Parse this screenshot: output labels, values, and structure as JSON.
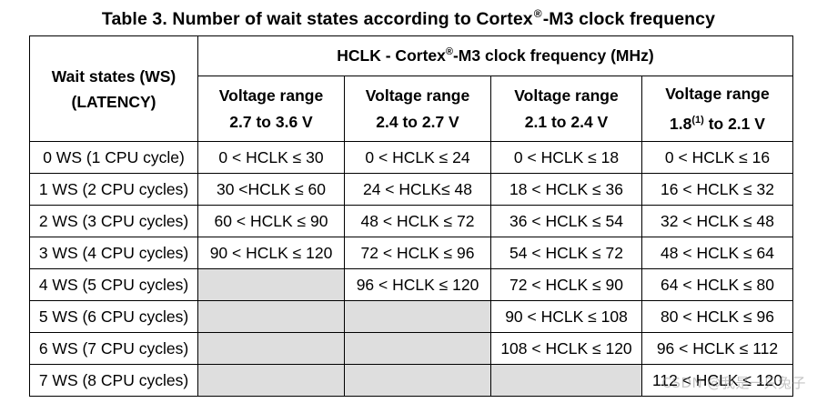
{
  "title": {
    "before": "Table 3. Number of wait states according to Cortex",
    "reg": "®",
    "after": "-M3 clock frequency"
  },
  "table": {
    "ws_header": {
      "line1": "Wait states (WS)",
      "line2": "(LATENCY)"
    },
    "freq_header": {
      "before": "HCLK - Cortex",
      "reg": "®",
      "after": "-M3 clock frequency (MHz)"
    },
    "voltage_headers": [
      {
        "line1": "Voltage range",
        "line2": "2.7 to 3.6 V"
      },
      {
        "line1": "Voltage range",
        "line2": "2.4 to 2.7 V"
      },
      {
        "line1": "Voltage range",
        "line2": "2.1 to 2.4 V"
      },
      {
        "line1": "Voltage range",
        "line2_pre": "1.8",
        "line2_sup": "(1)",
        "line2_post": " to 2.1 V"
      }
    ],
    "rows": [
      {
        "ws": "0 WS (1 CPU cycle)",
        "cells": [
          "0 < HCLK ≤ 30",
          "0 < HCLK ≤ 24",
          "0 < HCLK ≤ 18",
          "0 < HCLK ≤ 16"
        ]
      },
      {
        "ws": "1 WS (2 CPU cycles)",
        "cells": [
          "30 <HCLK ≤ 60",
          "24 < HCLK≤ 48",
          "18 < HCLK ≤ 36",
          "16 < HCLK ≤ 32"
        ]
      },
      {
        "ws": "2 WS (3 CPU cycles)",
        "cells": [
          "60 < HCLK ≤ 90",
          "48 < HCLK ≤ 72",
          "36 < HCLK ≤ 54",
          "32 < HCLK ≤ 48"
        ]
      },
      {
        "ws": "3 WS (4 CPU cycles)",
        "cells": [
          "90 < HCLK ≤ 120",
          "72 < HCLK ≤ 96",
          "54 < HCLK ≤ 72",
          "48 < HCLK ≤ 64"
        ]
      },
      {
        "ws": "4 WS (5 CPU cycles)",
        "cells": [
          "",
          "96 < HCLK ≤ 120",
          "72 < HCLK ≤ 90",
          "64 < HCLK ≤ 80"
        ]
      },
      {
        "ws": "5 WS (6 CPU cycles)",
        "cells": [
          "",
          "",
          "90 < HCLK ≤ 108",
          "80 < HCLK ≤ 96"
        ]
      },
      {
        "ws": "6 WS (7 CPU cycles)",
        "cells": [
          "",
          "",
          "108 < HCLK ≤ 120",
          "96 < HCLK ≤ 112"
        ]
      },
      {
        "ws": "7 WS (8 CPU cycles)",
        "cells": [
          "",
          "",
          "",
          "112 < HCLK ≤ 120"
        ]
      }
    ],
    "empty_cell_color": "#dedede"
  },
  "watermark": "CSDN @我是一只兔子"
}
